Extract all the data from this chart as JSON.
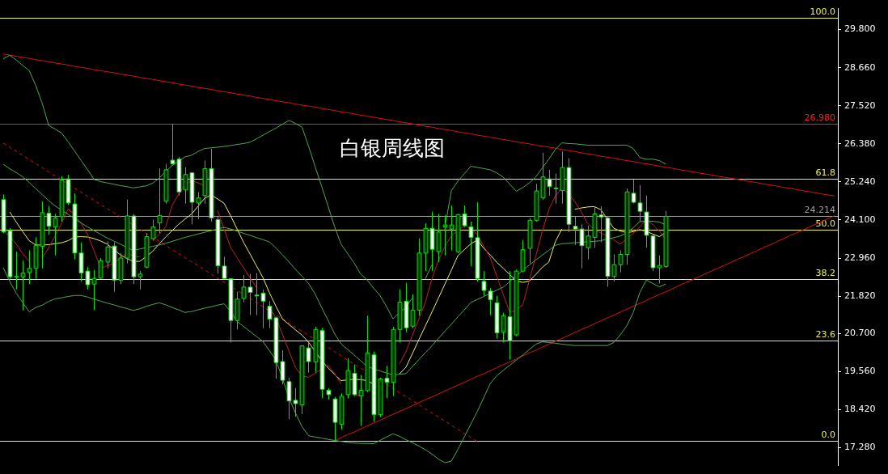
{
  "chart_data": {
    "type": "candlestick",
    "title": "白银周线图",
    "colors": [
      "#ffffff",
      "#ffffff",
      "#063806",
      "#063806",
      "#063806",
      "#063806",
      "#063806",
      "#ffffff",
      "#063806",
      "#063806",
      "#ffffff",
      "#ffffff",
      "#ffffff",
      "#ffffff",
      "#063806",
      "#063806",
      "#063806",
      "#ffffff",
      "#063806",
      "#063806",
      "#ffffff",
      "#063806",
      "#063806",
      "#063806",
      "#063806",
      "#063806",
      "#ffffff",
      "#ffffff",
      "#063806",
      "#ffffff",
      "#063806",
      "#063806",
      "#ffffff",
      "#ffffff",
      "#ffffff",
      "#ffffff",
      "#063806",
      "#063806",
      "#ffffff",
      "#ffffff",
      "#ffffff",
      "#ffffff",
      "#ffffff",
      "#ffffff",
      "#ffffff",
      "#ffffff",
      "#063806",
      "#ffffff",
      "#063806",
      "#ffffff",
      "#ffffff",
      "#ffffff",
      "#063806",
      "#063806",
      "#ffffff",
      "#063806",
      "#063806",
      "#ffffff",
      "#063806",
      "#ffffff",
      "#063806",
      "#063806",
      "#ffffff",
      "#063806",
      "#063806",
      "#063806",
      "#ffffff",
      "#063806",
      "#063806",
      "#063806",
      "#063806",
      "#ffffff",
      "#ffffff",
      "#ffffff",
      "#ffffff",
      "#ffffff",
      "#ffffff",
      "#063806",
      "#ffffff",
      "#063806",
      "#063806",
      "#063806",
      "#063806",
      "#063806",
      "#ffffff",
      "#ffffff",
      "#063806",
      "#ffffff",
      "#ffffff",
      "#ffffff",
      "#063806",
      "#063806",
      "#ffffff",
      "#ffffff",
      "#063806",
      "#063806",
      "#063806",
      "#ffffff",
      "#ffffff",
      "#ffffff",
      "#ffffff",
      "#063806",
      "#063806",
      null,
      null,
      null,
      null,
      null,
      null,
      null,
      null,
      null,
      null,
      null,
      null,
      null,
      null,
      null,
      null,
      null,
      null,
      null,
      null,
      null,
      null,
      null,
      null,
      null,
      null
    ],
    "categories": [
      null,
      null,
      null,
      null,
      null,
      null,
      null,
      null,
      null,
      null,
      null,
      null,
      null,
      null,
      null,
      null,
      null,
      null,
      null,
      null,
      null,
      null,
      null,
      null,
      null,
      null,
      null,
      null,
      null,
      null,
      null,
      null,
      null,
      null,
      null,
      null,
      null,
      null,
      null,
      null,
      null,
      null,
      null,
      null,
      null,
      null,
      null,
      null,
      null,
      null,
      null,
      null,
      null,
      null,
      null,
      null,
      null,
      null,
      null,
      null,
      null,
      null,
      null,
      null,
      null,
      null,
      null,
      null,
      null,
      null,
      null,
      null,
      null,
      null,
      null,
      null,
      null,
      null,
      null,
      null,
      null,
      null,
      null,
      null,
      null,
      null,
      null,
      null,
      null,
      null,
      null,
      null,
      null,
      null,
      null,
      null,
      null,
      null,
      null,
      null,
      null,
      null,
      null,
      null,
      null,
      null,
      null,
      null,
      null,
      null,
      null,
      null,
      null,
      null,
      null,
      null,
      null,
      null,
      null,
      null,
      null,
      null,
      null,
      null,
      null,
      null,
      null,
      null,
      null
    ],
    "ohlc": [
      [
        24.71,
        24.86,
        23.7,
        23.75
      ],
      [
        23.78,
        23.85,
        22.34,
        22.4
      ],
      [
        22.4,
        23.15,
        22.02,
        22.41
      ],
      [
        22.4,
        22.88,
        21.4,
        22.51
      ],
      [
        22.53,
        23.19,
        22.18,
        22.65
      ],
      [
        22.65,
        23.58,
        22.34,
        23.33
      ],
      [
        23.31,
        24.66,
        22.65,
        24.32
      ],
      [
        24.3,
        24.52,
        23.66,
        23.91
      ],
      [
        23.89,
        24.28,
        23.04,
        24.16
      ],
      [
        24.2,
        25.41,
        24.05,
        25.29
      ],
      [
        25.33,
        25.45,
        24.55,
        24.61
      ],
      [
        24.58,
        24.9,
        22.92,
        23.11
      ],
      [
        23.11,
        23.43,
        22.26,
        22.51
      ],
      [
        22.57,
        22.69,
        22.02,
        22.16
      ],
      [
        22.18,
        22.61,
        21.4,
        22.35
      ],
      [
        22.36,
        22.96,
        22.34,
        22.88
      ],
      [
        22.84,
        23.46,
        22.65,
        23.29
      ],
      [
        23.32,
        23.43,
        21.95,
        22.3
      ],
      [
        22.3,
        23.11,
        22.18,
        22.96
      ],
      [
        22.96,
        24.71,
        22.8,
        24.22
      ],
      [
        24.22,
        24.28,
        22.18,
        22.4
      ],
      [
        22.4,
        22.57,
        22.02,
        22.48
      ],
      [
        22.69,
        23.7,
        22.65,
        23.6
      ],
      [
        23.54,
        24.11,
        23.5,
        23.89
      ],
      [
        24.01,
        25.64,
        23.7,
        24.23
      ],
      [
        24.66,
        25.78,
        24.59,
        25.6
      ],
      [
        25.89,
        26.97,
        25.76,
        25.78
      ],
      [
        25.92,
        25.99,
        24.83,
        24.94
      ],
      [
        25.0,
        25.68,
        24.59,
        25.46
      ],
      [
        25.51,
        25.53,
        23.97,
        24.63
      ],
      [
        24.61,
        24.94,
        24.13,
        24.76
      ],
      [
        24.83,
        25.88,
        24.59,
        25.64
      ],
      [
        25.64,
        26.23,
        24.05,
        24.16
      ],
      [
        24.11,
        24.2,
        22.49,
        22.73
      ],
      [
        22.72,
        23.0,
        22.34,
        22.35
      ],
      [
        22.34,
        22.36,
        20.43,
        21.09
      ],
      [
        21.09,
        21.95,
        20.82,
        21.73
      ],
      [
        21.75,
        22.45,
        21.64,
        22.09
      ],
      [
        22.09,
        22.49,
        21.25,
        21.93
      ],
      [
        21.85,
        22.51,
        21.25,
        21.83
      ],
      [
        21.91,
        22.02,
        20.86,
        21.67
      ],
      [
        21.52,
        21.67,
        20.86,
        21.13
      ],
      [
        21.17,
        21.21,
        19.34,
        19.83
      ],
      [
        19.86,
        20.2,
        19.18,
        19.3
      ],
      [
        19.26,
        19.38,
        18.13,
        18.68
      ],
      [
        18.7,
        19.07,
        18.21,
        18.6
      ],
      [
        18.56,
        20.35,
        18.29,
        20.33
      ],
      [
        20.27,
        20.48,
        19.53,
        19.86
      ],
      [
        19.85,
        20.9,
        19.53,
        20.82
      ],
      [
        20.79,
        20.87,
        18.76,
        19.03
      ],
      [
        19.0,
        19.07,
        18.72,
        18.87
      ],
      [
        18.74,
        18.8,
        17.49,
        18.04
      ],
      [
        17.98,
        18.91,
        17.82,
        18.82
      ],
      [
        18.87,
        19.96,
        18.76,
        19.59
      ],
      [
        19.51,
        19.77,
        18.83,
        18.87
      ],
      [
        18.83,
        19.46,
        17.94,
        19.0
      ],
      [
        18.99,
        21.23,
        18.95,
        20.12
      ],
      [
        20.06,
        20.16,
        18.06,
        18.27
      ],
      [
        18.27,
        19.38,
        18.2,
        19.34
      ],
      [
        19.36,
        19.73,
        18.76,
        19.24
      ],
      [
        19.24,
        20.9,
        18.83,
        20.82
      ],
      [
        20.82,
        22.02,
        20.43,
        21.64
      ],
      [
        21.67,
        22.22,
        20.74,
        20.87
      ],
      [
        20.92,
        21.87,
        20.86,
        21.4
      ],
      [
        21.4,
        23.55,
        21.23,
        23.11
      ],
      [
        23.11,
        24.0,
        22.57,
        23.85
      ],
      [
        23.85,
        24.35,
        22.57,
        23.22
      ],
      [
        23.15,
        24.28,
        22.84,
        23.74
      ],
      [
        23.89,
        24.24,
        23.04,
        23.95
      ],
      [
        23.83,
        24.53,
        23.19,
        23.95
      ],
      [
        23.15,
        24.28,
        23.11,
        24.26
      ],
      [
        24.28,
        24.53,
        23.89,
        23.93
      ],
      [
        23.89,
        24.05,
        22.72,
        23.58
      ],
      [
        23.57,
        24.63,
        22.26,
        22.35
      ],
      [
        22.26,
        22.57,
        21.83,
        21.99
      ],
      [
        21.97,
        22.06,
        21.25,
        21.71
      ],
      [
        21.62,
        21.83,
        20.55,
        20.72
      ],
      [
        20.74,
        21.32,
        20.43,
        21.23
      ],
      [
        21.2,
        22.57,
        19.92,
        20.48
      ],
      [
        20.66,
        22.61,
        20.62,
        22.57
      ],
      [
        22.57,
        23.5,
        22.53,
        23.21
      ],
      [
        23.25,
        24.16,
        22.8,
        24.09
      ],
      [
        24.09,
        25.18,
        24.05,
        24.97
      ],
      [
        24.76,
        26.11,
        24.71,
        25.39
      ],
      [
        25.33,
        25.6,
        24.83,
        25.1
      ],
      [
        25.06,
        25.49,
        24.59,
        25.04
      ],
      [
        24.98,
        26.15,
        24.59,
        25.67
      ],
      [
        25.67,
        25.95,
        23.74,
        23.97
      ],
      [
        23.91,
        24.2,
        23.35,
        23.83
      ],
      [
        23.83,
        23.97,
        22.65,
        23.33
      ],
      [
        23.27,
        23.93,
        22.92,
        23.62
      ],
      [
        23.58,
        24.51,
        23.27,
        24.28
      ],
      [
        24.25,
        24.51,
        23.43,
        24.19
      ],
      [
        24.16,
        24.2,
        22.1,
        22.41
      ],
      [
        22.41,
        23.07,
        22.26,
        22.76
      ],
      [
        22.76,
        23.19,
        22.53,
        23.07
      ],
      [
        23.07,
        25.04,
        22.76,
        24.94
      ],
      [
        24.9,
        25.31,
        24.59,
        24.63
      ],
      [
        24.61,
        25.14,
        24.05,
        24.36
      ],
      [
        24.34,
        24.83,
        23.27,
        23.64
      ],
      [
        23.62,
        23.66,
        22.57,
        22.67
      ],
      [
        22.67,
        23.04,
        22.2,
        22.74
      ],
      [
        22.71,
        24.37,
        22.67,
        24.21
      ],
      null,
      null,
      null,
      null,
      null,
      null,
      null,
      null,
      null,
      null,
      null,
      null,
      null,
      null,
      null,
      null,
      null,
      null,
      null,
      null,
      null,
      null,
      null,
      null,
      null,
      null
    ],
    "ylim": [
      16.75,
      30.43
    ],
    "yticks": [
      {
        "value": 17.28,
        "label": "17.280"
      },
      {
        "value": 18.42,
        "label": "18.420"
      },
      {
        "value": 19.56,
        "label": "19.560"
      },
      {
        "value": 20.7,
        "label": "20.700"
      },
      {
        "value": 21.82,
        "label": "21.820"
      },
      {
        "value": 22.96,
        "label": "22.960"
      },
      {
        "value": 24.1,
        "label": "24.100"
      },
      {
        "value": 25.24,
        "label": "25.240"
      },
      {
        "value": 26.38,
        "label": "26.380"
      },
      {
        "value": 27.52,
        "label": "27.520"
      },
      {
        "value": 28.66,
        "label": "28.660"
      },
      {
        "value": 29.8,
        "label": "29.800"
      }
    ],
    "tick_labels": "y",
    "series": [
      {
        "type": "line",
        "color": "#4fa84f",
        "values": [
          28.93,
          29.03,
          28.89,
          28.73,
          28.57,
          28.13,
          27.59,
          26.93,
          26.82,
          26.7,
          26.44,
          26.16,
          25.88,
          25.6,
          25.31,
          25.25,
          25.21,
          25.17,
          25.13,
          25.1,
          25.06,
          25.09,
          25.12,
          25.2,
          25.35,
          25.55,
          25.73,
          25.86,
          25.99,
          26.04,
          26.15,
          26.24,
          26.26,
          26.28,
          26.3,
          26.33,
          26.36,
          26.39,
          26.43,
          26.53,
          26.64,
          26.75,
          26.85,
          26.97,
          27.08,
          26.99,
          26.88,
          26.31,
          25.71,
          25.12,
          24.52,
          23.91,
          23.38,
          23.1,
          22.82,
          22.49,
          22.31,
          22.06,
          21.84,
          21.51,
          21.14,
          21.32,
          21.49,
          21.77,
          null,
          22.34,
          22.76,
          null,
          23.88,
          24.98,
          25.26,
          25.49,
          25.71,
          25.67,
          25.64,
          25.6,
          25.51,
          25.38,
          25.17,
          24.96,
          25.07,
          25.21,
          25.39,
          25.66,
          25.92,
          26.21,
          26.41,
          26.39,
          26.38,
          26.36,
          26.34,
          26.34,
          26.34,
          26.34,
          26.34,
          26.34,
          26.34,
          26.24,
          25.97,
          25.92,
          25.92,
          25.88,
          25.77,
          null,
          null,
          null,
          null,
          null,
          null,
          null,
          null,
          null,
          null,
          null,
          null,
          null,
          null,
          null,
          null,
          null,
          null,
          null,
          null,
          null,
          null,
          null,
          null,
          null,
          null
        ]
      },
      {
        "type": "line",
        "color": "#4fa84f",
        "values": [
          25.77,
          25.63,
          25.52,
          25.39,
          25.22,
          25.04,
          24.86,
          24.68,
          24.52,
          24.39,
          24.27,
          24.14,
          24.01,
          23.89,
          23.78,
          23.67,
          23.56,
          23.47,
          23.38,
          23.28,
          23.19,
          23.23,
          23.27,
          23.31,
          23.35,
          23.4,
          23.46,
          23.52,
          23.58,
          23.63,
          23.68,
          23.73,
          23.78,
          23.83,
          23.88,
          23.83,
          23.77,
          23.7,
          23.64,
          23.57,
          23.51,
          23.44,
          23.26,
          23.05,
          22.84,
          22.62,
          22.41,
          22.2,
          21.89,
          21.49,
          21.1,
          20.7,
          20.39,
          20.23,
          20.06,
          19.89,
          19.72,
          19.64,
          19.58,
          19.52,
          19.46,
          19.48,
          19.5,
          19.71,
          19.92,
          20.13,
          20.33,
          20.55,
          20.77,
          20.98,
          21.2,
          21.41,
          21.63,
          21.72,
          21.81,
          21.91,
          22.0,
          22.09,
          22.26,
          22.43,
          22.6,
          22.75,
          22.9,
          23.05,
          23.19,
          23.34,
          23.39,
          23.4,
          23.42,
          23.43,
          23.45,
          23.46,
          23.48,
          23.53,
          23.57,
          23.62,
          23.71,
          23.87,
          24.05,
          24.07,
          24.06,
          24.04,
          23.95,
          null,
          null,
          null,
          null,
          null,
          null,
          null,
          null,
          null,
          null,
          null,
          null,
          null,
          null,
          null,
          null,
          null,
          null,
          null,
          null,
          null,
          null,
          null,
          null,
          null,
          null
        ]
      },
      {
        "type": "line",
        "color": "#4fa84f",
        "values": [
          22.67,
          22.26,
          21.91,
          21.63,
          21.35,
          21.48,
          21.55,
          21.66,
          21.74,
          21.77,
          21.81,
          21.84,
          21.84,
          21.79,
          21.73,
          21.67,
          21.61,
          21.56,
          21.5,
          21.45,
          21.39,
          21.44,
          21.51,
          21.57,
          21.62,
          21.56,
          21.48,
          21.41,
          21.33,
          21.36,
          21.41,
          21.46,
          21.5,
          21.55,
          21.59,
          21.36,
          21.06,
          20.91,
          20.76,
          20.61,
          20.46,
          20.18,
          19.9,
          19.35,
          18.76,
          18.32,
          17.91,
          17.64,
          17.6,
          17.57,
          17.53,
          17.5,
          17.47,
          17.44,
          17.42,
          17.41,
          17.41,
          17.4,
          17.5,
          17.6,
          17.7,
          17.62,
          17.52,
          17.43,
          17.33,
          17.22,
          17.09,
          16.94,
          16.83,
          16.88,
          17.23,
          17.61,
          17.99,
          18.37,
          18.79,
          19.21,
          19.44,
          19.6,
          19.75,
          19.91,
          20.06,
          20.22,
          20.38,
          20.45,
          20.43,
          20.41,
          20.38,
          20.36,
          20.34,
          20.34,
          20.34,
          20.34,
          20.34,
          20.34,
          20.43,
          20.66,
          20.93,
          21.33,
          21.92,
          22.3,
          22.2,
          22.1,
          22.18,
          null,
          null,
          null,
          null,
          null,
          null,
          null,
          null,
          null,
          null,
          null,
          null,
          null,
          null,
          null,
          null,
          null,
          null,
          null,
          null,
          null,
          null,
          null,
          null,
          null,
          null
        ]
      },
      {
        "type": "line",
        "color": "#c0202a",
        "values": [
          23.76,
          23.61,
          23.38,
          23.09,
          22.87,
          null,
          22.96,
          23.27,
          23.63,
          24.01,
          24.43,
          24.24,
          23.99,
          23.66,
          23.17,
          22.65,
          22.73,
          22.8,
          22.95,
          23.1,
          23.03,
          22.99,
          null,
          23.46,
          23.67,
          23.89,
          24.53,
          24.88,
          25.16,
          25.28,
          25.21,
          25.12,
          null,
          24.39,
          23.83,
          23.28,
          22.97,
          22.67,
          22.37,
          22.07,
          null,
          21.46,
          21.16,
          20.67,
          20.17,
          19.68,
          19.43,
          19.39,
          19.51,
          19.63,
          19.76,
          19.51,
          19.19,
          null,
          18.87,
          18.83,
          null,
          null,
          null,
          null,
          null,
          19.78,
          20.16,
          20.65,
          21.14,
          21.64,
          22.34,
          22.89,
          23.3,
          23.63,
          23.78,
          23.93,
          23.85,
          23.66,
          23.31,
          22.96,
          22.41,
          21.86,
          21.33,
          21.41,
          21.56,
          22.29,
          23.02,
          23.77,
          24.41,
          24.82,
          25.06,
          24.89,
          24.65,
          24.34,
          23.99,
          23.82,
          23.71,
          23.61,
          23.5,
          23.38,
          23.54,
          23.7,
          23.89,
          24.11,
          23.96,
          23.77,
          23.53,
          null,
          null,
          null,
          null,
          null,
          null,
          null,
          null,
          null,
          null,
          null,
          null,
          null,
          null,
          null,
          null,
          null,
          null,
          null,
          null,
          null,
          null,
          null,
          null,
          null,
          null
        ]
      },
      {
        "type": "line",
        "color": "#f0f060",
        "values": [
          null,
          24.34,
          24.04,
          23.75,
          23.48,
          23.35,
          23.35,
          23.36,
          23.39,
          23.42,
          23.48,
          23.59,
          23.6,
          23.59,
          23.54,
          23.47,
          23.38,
          23.22,
          23.06,
          22.95,
          22.86,
          22.86,
          23.0,
          23.16,
          23.38,
          23.59,
          23.78,
          23.97,
          24.13,
          24.28,
          24.51,
          24.75,
          24.85,
          24.73,
          24.6,
          24.23,
          23.83,
          23.43,
          23.08,
          22.72,
          22.37,
          21.91,
          21.51,
          21.13,
          20.97,
          20.81,
          20.65,
          20.44,
          20.17,
          19.9,
          19.67,
          19.48,
          19.29,
          19.31,
          19.33,
          19.32,
          19.29,
          19.19,
          null,
          null,
          null,
          19.49,
          19.69,
          20.1,
          20.52,
          20.93,
          21.34,
          21.76,
          22.18,
          22.6,
          23.03,
          23.21,
          23.39,
          23.5,
          23.25,
          23.05,
          22.83,
          22.65,
          22.46,
          22.28,
          22.23,
          22.27,
          22.47,
          22.68,
          22.84,
          23.45,
          23.83,
          null,
          24.42,
          24.46,
          24.49,
          24.5,
          24.41,
          24.13,
          23.85,
          23.77,
          23.72,
          23.75,
          23.81,
          23.76,
          23.68,
          23.6,
          23.72,
          null,
          null,
          null,
          null,
          null,
          null,
          null,
          null,
          null,
          null,
          null,
          null,
          null,
          null,
          null,
          null,
          null,
          null,
          null,
          null,
          null,
          null,
          null,
          null,
          null,
          null
        ]
      },
      {
        "type": "line",
        "color": "#dd1111",
        "values": [
          29.07,
          29.04,
          29.0,
          28.97,
          28.94,
          28.9,
          28.87,
          28.84,
          28.8,
          28.77,
          28.74,
          28.7,
          28.67,
          28.64,
          28.6,
          28.57,
          28.54,
          28.51,
          28.47,
          28.44,
          28.41,
          28.37,
          28.34,
          28.31,
          28.27,
          28.24,
          28.21,
          28.17,
          28.14,
          28.11,
          28.07,
          28.04,
          28.01,
          27.97,
          27.94,
          27.91,
          27.87,
          27.84,
          27.81,
          27.77,
          27.74,
          27.71,
          27.67,
          27.64,
          27.61,
          27.57,
          27.54,
          27.51,
          27.48,
          27.44,
          27.41,
          27.38,
          27.34,
          27.31,
          27.28,
          27.24,
          27.21,
          27.18,
          27.14,
          27.11,
          27.08,
          27.04,
          27.01,
          26.98,
          26.94,
          26.91,
          26.88,
          26.84,
          26.81,
          26.78,
          26.74,
          26.71,
          26.68,
          26.64,
          26.61,
          26.58,
          26.54,
          26.51,
          26.48,
          26.44,
          26.41,
          26.38,
          26.34,
          26.31,
          26.28,
          26.25,
          26.21,
          26.18,
          26.15,
          26.11,
          26.08,
          26.05,
          26.01,
          25.98,
          25.95,
          25.91,
          25.88,
          25.85,
          25.81,
          25.78,
          25.75,
          25.71,
          25.68,
          25.65,
          25.61,
          25.58,
          25.55,
          25.51,
          25.48,
          25.45,
          25.41,
          25.38,
          25.35,
          25.32,
          25.28,
          25.25,
          25.22,
          25.18,
          25.15,
          25.12,
          25.08,
          25.05,
          25.02,
          24.98,
          24.95,
          24.92,
          24.88,
          24.85,
          24.82
        ]
      },
      {
        "type": "line",
        "color": "#dd1111",
        "values": [
          null,
          null,
          null,
          null,
          null,
          null,
          null,
          null,
          null,
          null,
          null,
          null,
          null,
          null,
          null,
          null,
          null,
          null,
          null,
          null,
          null,
          null,
          null,
          null,
          null,
          null,
          null,
          null,
          null,
          null,
          null,
          null,
          null,
          null,
          null,
          null,
          null,
          null,
          null,
          null,
          null,
          null,
          null,
          null,
          null,
          null,
          null,
          null,
          null,
          null,
          null,
          17.49,
          17.58,
          17.67,
          17.75,
          17.84,
          17.93,
          18.02,
          18.1,
          18.19,
          18.28,
          18.37,
          18.45,
          18.54,
          18.63,
          18.72,
          18.8,
          18.89,
          18.98,
          19.07,
          19.15,
          19.24,
          19.33,
          19.42,
          19.5,
          19.59,
          19.68,
          19.77,
          19.85,
          19.94,
          20.03,
          20.12,
          20.2,
          20.29,
          20.38,
          20.47,
          20.55,
          20.64,
          20.73,
          20.82,
          20.9,
          20.99,
          21.08,
          21.17,
          21.25,
          21.34,
          21.43,
          21.52,
          21.6,
          21.69,
          21.78,
          21.87,
          21.95,
          22.04,
          22.13,
          22.22,
          22.3,
          22.39,
          22.48,
          22.57,
          22.65,
          22.74,
          22.83,
          22.92,
          23.0,
          23.09,
          23.18,
          23.27,
          23.35,
          23.44,
          23.53,
          23.62,
          23.7,
          23.79,
          23.88,
          23.97,
          24.05,
          24.14,
          24.23
        ]
      },
      {
        "type": "line",
        "color": "#dd1111",
        "line_style": "dashed",
        "values": [
          26.4,
          26.28,
          26.16,
          26.03,
          25.91,
          25.79,
          25.67,
          25.54,
          25.42,
          25.3,
          25.18,
          25.05,
          24.93,
          24.81,
          24.69,
          24.56,
          24.44,
          24.32,
          24.2,
          24.07,
          23.95,
          23.83,
          23.71,
          23.58,
          23.46,
          23.34,
          23.22,
          23.1,
          22.97,
          22.85,
          22.73,
          22.61,
          22.48,
          22.36,
          22.24,
          22.12,
          21.99,
          21.87,
          21.75,
          21.63,
          21.5,
          21.38,
          21.26,
          21.14,
          21.01,
          20.89,
          20.77,
          20.65,
          20.52,
          null,
          20.28,
          20.16,
          20.04,
          19.91,
          19.79,
          19.67,
          19.55,
          null,
          null,
          19.18,
          19.06,
          18.93,
          18.81,
          18.69,
          18.57,
          18.44,
          18.32,
          18.2,
          18.08,
          17.95,
          17.83,
          17.71,
          17.59,
          17.46,
          null,
          null,
          null,
          null,
          null,
          null,
          null,
          null,
          null,
          null,
          null,
          null,
          null,
          null,
          null,
          null,
          null,
          null,
          null,
          null,
          null,
          null,
          null,
          null,
          null,
          null,
          null,
          null,
          null,
          null,
          null,
          null,
          null,
          null,
          null,
          null,
          null,
          null,
          null,
          null,
          null,
          null,
          null,
          null,
          null,
          null,
          null,
          null,
          null,
          null,
          null,
          null,
          null,
          null,
          null
        ]
      }
    ],
    "ref_lines": [
      {
        "axis": "y",
        "value": 30.15,
        "color": "#f0f050"
      },
      {
        "axis": "y",
        "value": 26.98,
        "label": "26.980",
        "color": "#ff2020"
      },
      {
        "axis": "y",
        "value": 25.34,
        "color": "#f0f050"
      },
      {
        "axis": "y",
        "value": 24.214,
        "label": "24.214",
        "color": "#a0a0a0"
      },
      {
        "axis": "y",
        "value": 23.82,
        "color": "#f0f050"
      },
      {
        "axis": "y",
        "value": 22.33,
        "color": "#f0f050"
      },
      {
        "axis": "y",
        "value": 20.48,
        "color": "#f0f050"
      },
      {
        "axis": "y",
        "value": 17.49,
        "color": "#f0f050"
      }
    ],
    "annotations": [
      "100.0",
      "61.8",
      "50.0",
      "38.2",
      "23.6",
      "0.0"
    ]
  }
}
